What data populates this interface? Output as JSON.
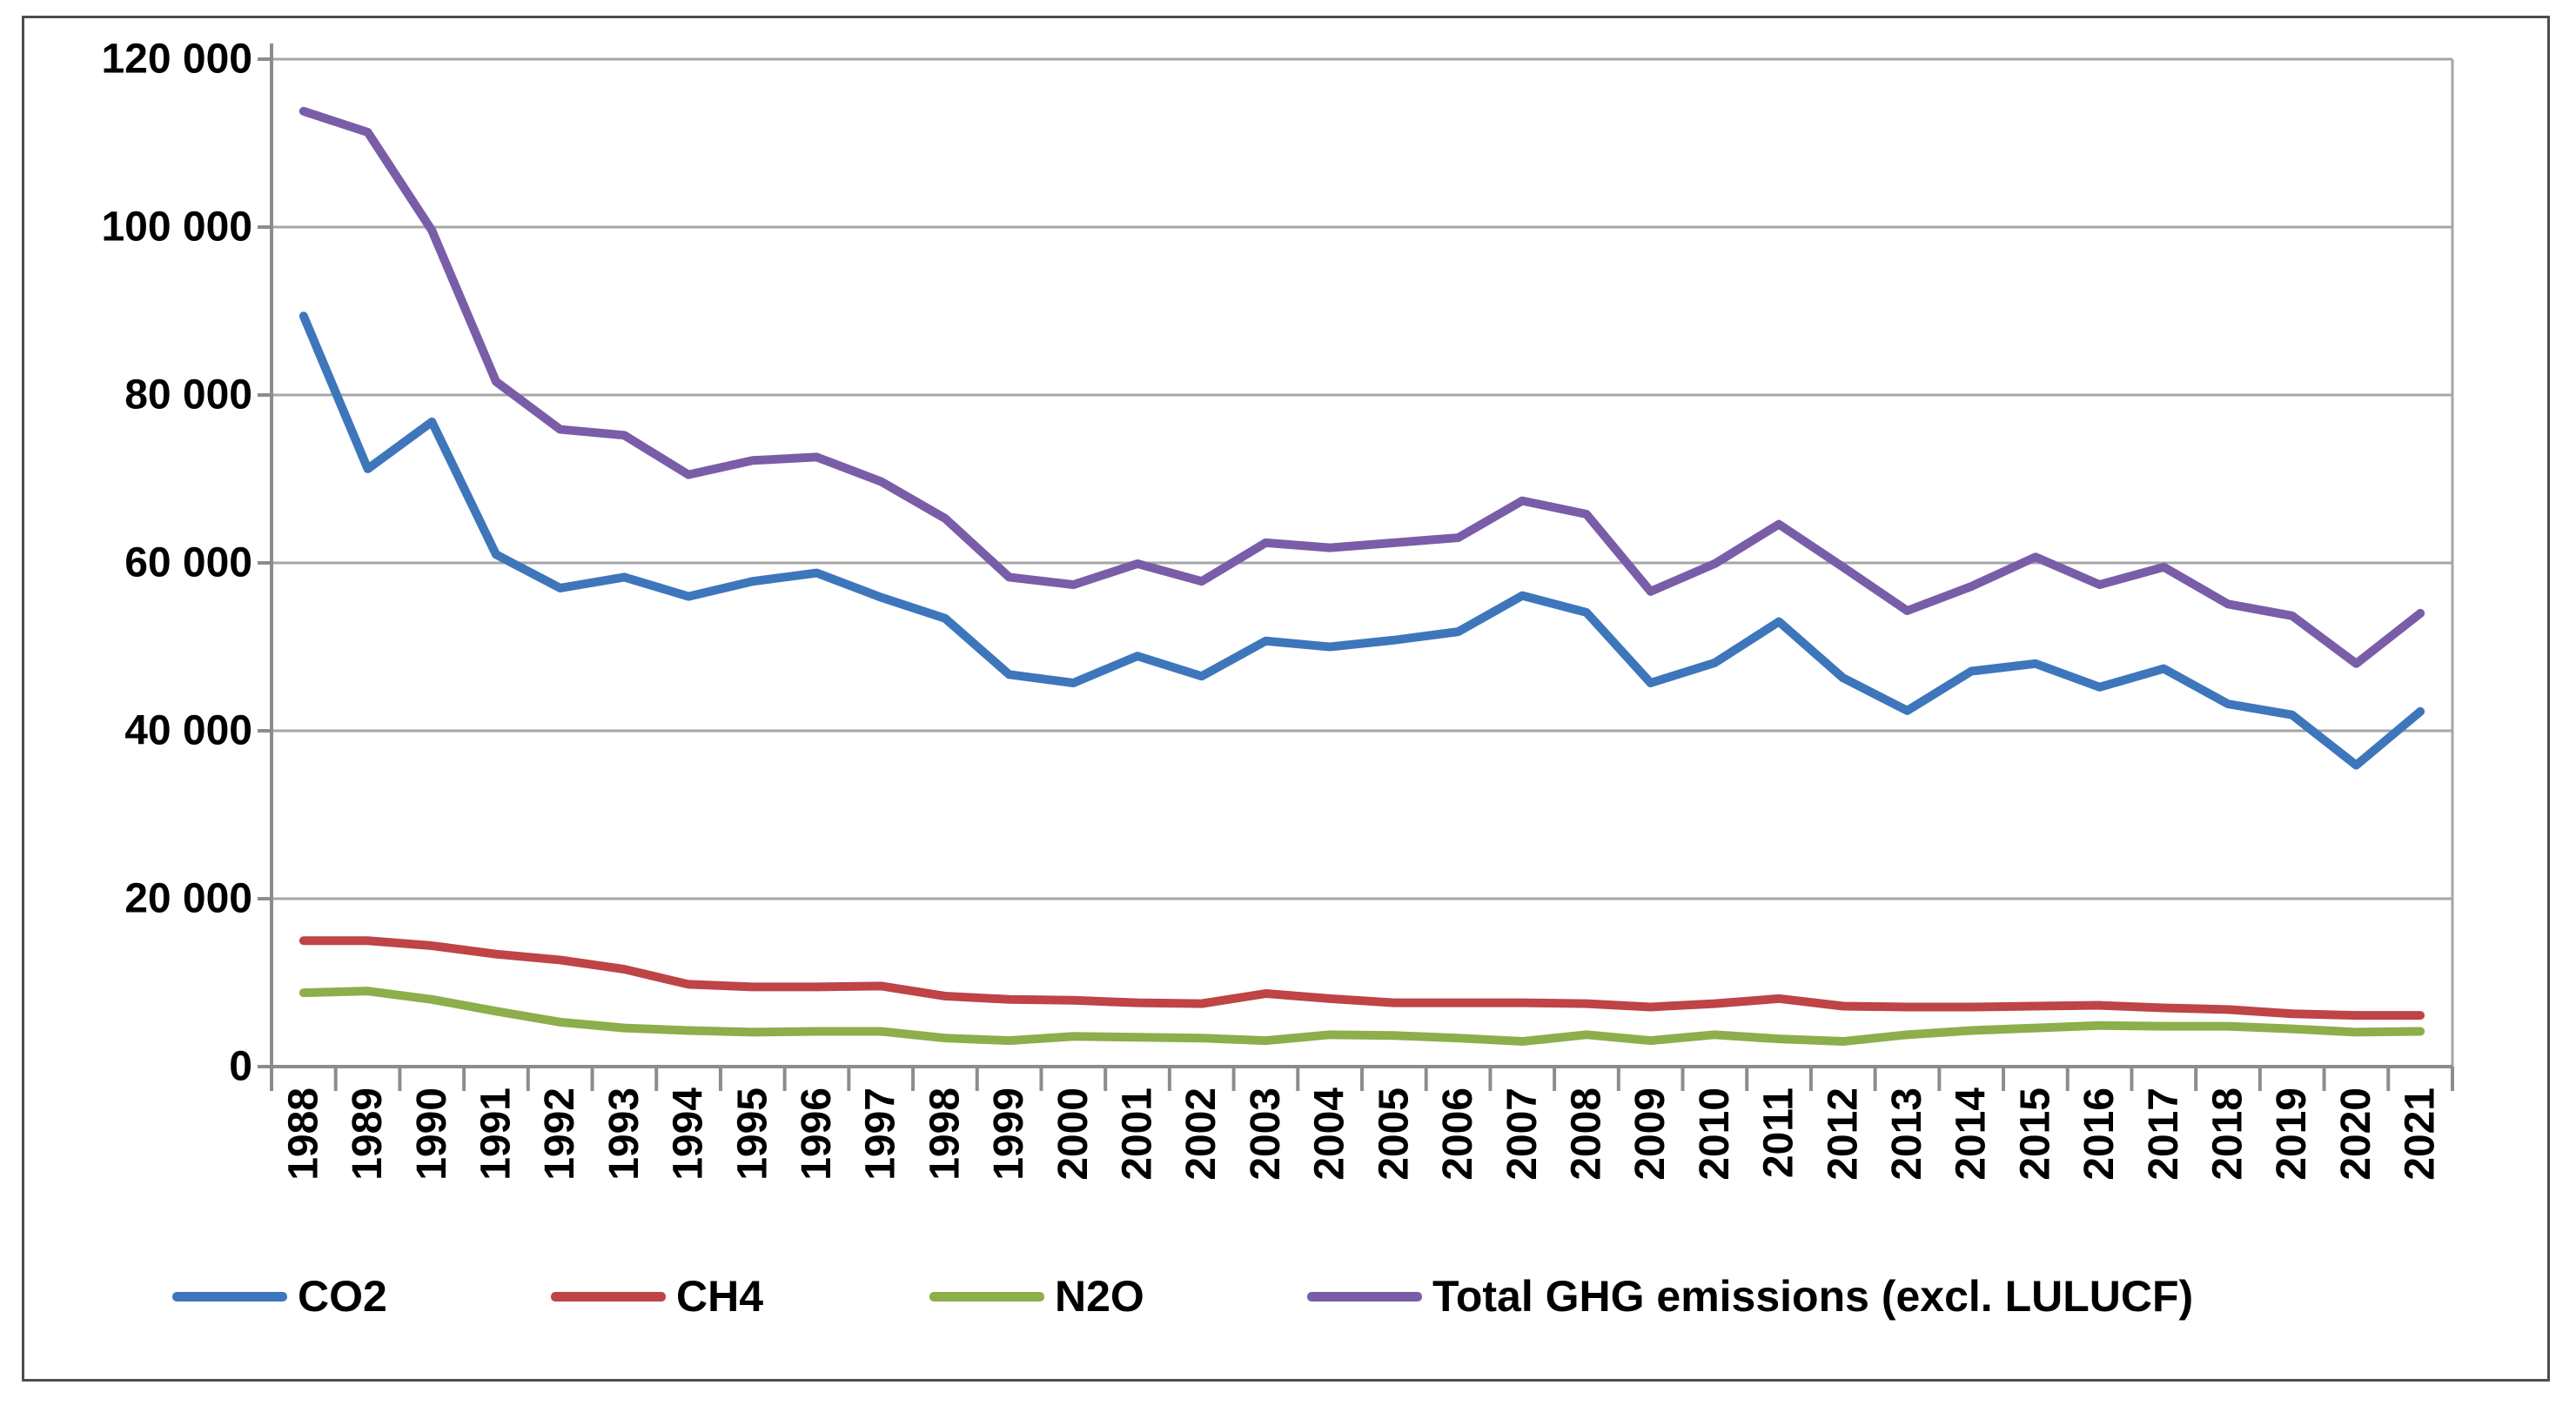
{
  "figure": {
    "background": "#ffffff",
    "border_color": "#4d4d4d"
  },
  "chart_data": {
    "type": "line",
    "title": "",
    "xlabel": "",
    "ylabel": "",
    "x": [
      1988,
      1989,
      1990,
      1991,
      1992,
      1993,
      1994,
      1995,
      1996,
      1997,
      1998,
      1999,
      2000,
      2001,
      2002,
      2003,
      2004,
      2005,
      2006,
      2007,
      2008,
      2009,
      2010,
      2011,
      2012,
      2013,
      2014,
      2015,
      2016,
      2017,
      2018,
      2019,
      2020,
      2021
    ],
    "ylim": [
      0,
      120000
    ],
    "ytick_step": 20000,
    "yticks": [
      {
        "value": 0,
        "label": "0"
      },
      {
        "value": 20000,
        "label": "20 000"
      },
      {
        "value": 40000,
        "label": "40 000"
      },
      {
        "value": 60000,
        "label": "60 000"
      },
      {
        "value": 80000,
        "label": "80 000"
      },
      {
        "value": 100000,
        "label": "100 000"
      },
      {
        "value": 120000,
        "label": "120 000"
      }
    ],
    "grid": true,
    "legend_position": "bottom",
    "series": [
      {
        "name": "CO2",
        "color": "#3E76BC",
        "values": [
          89400,
          71200,
          76800,
          61000,
          57000,
          58300,
          56000,
          57800,
          58800,
          55900,
          53400,
          46700,
          45700,
          48900,
          46500,
          50700,
          50000,
          50800,
          51800,
          56100,
          54100,
          45700,
          48100,
          53000,
          46300,
          42400,
          47100,
          48000,
          45200,
          47400,
          43200,
          41900,
          35900,
          42300
        ]
      },
      {
        "name": "CH4",
        "color": "#BE4445",
        "values": [
          15000,
          15000,
          14400,
          13400,
          12700,
          11600,
          9800,
          9500,
          9500,
          9600,
          8400,
          8000,
          7900,
          7600,
          7500,
          8700,
          8100,
          7600,
          7600,
          7600,
          7500,
          7100,
          7500,
          8100,
          7200,
          7100,
          7100,
          7200,
          7300,
          7000,
          6800,
          6300,
          6100,
          6100
        ]
      },
      {
        "name": "N2O",
        "color": "#8CAE4B",
        "values": [
          8800,
          9000,
          8000,
          6600,
          5300,
          4600,
          4300,
          4100,
          4200,
          4200,
          3400,
          3100,
          3600,
          3500,
          3400,
          3100,
          3800,
          3700,
          3400,
          3000,
          3800,
          3100,
          3800,
          3300,
          3000,
          3800,
          4300,
          4600,
          4900,
          4800,
          4800,
          4500,
          4100,
          4200
        ]
      },
      {
        "name": "Total GHG emissions (excl. LULUCF)",
        "color": "#7A5DA8",
        "values": [
          113800,
          111300,
          99600,
          81600,
          75900,
          75200,
          70500,
          72200,
          72600,
          69700,
          65300,
          58300,
          57400,
          59900,
          57800,
          62400,
          61800,
          62400,
          63000,
          67400,
          65800,
          56600,
          59900,
          64600,
          59500,
          54300,
          57200,
          60700,
          57400,
          59500,
          55100,
          53700,
          48000,
          54000
        ]
      }
    ],
    "styles": {
      "gridline_color": "#A6A6A6",
      "axis_color": "#8C8C8C",
      "tick_label_color": "#000000"
    }
  }
}
